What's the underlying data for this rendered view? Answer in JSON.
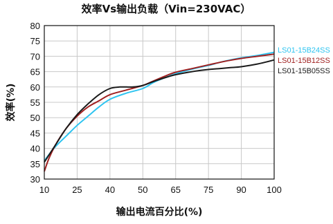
{
  "chart_data": {
    "type": "line",
    "title": "效率Vs输出负载（Vin=230VAC）",
    "xlabel": "输出电流百分比(%)",
    "ylabel": "效率(%)",
    "x_ticks": [
      10,
      25,
      40,
      50,
      65,
      75,
      90,
      100
    ],
    "y_ticks": [
      30,
      35,
      40,
      45,
      50,
      55,
      60,
      65,
      70,
      75,
      80
    ],
    "ylim": [
      30,
      80
    ],
    "grid": true,
    "legend_position": "right",
    "series": [
      {
        "name": "LS01-15B24SS",
        "color": "#2ec4f0",
        "points": [
          [
            10,
            36.0
          ],
          [
            15,
            40.5
          ],
          [
            20,
            44.0
          ],
          [
            25,
            47.5
          ],
          [
            30,
            50.5
          ],
          [
            35,
            53.5
          ],
          [
            40,
            56.0
          ],
          [
            45,
            58.0
          ],
          [
            50,
            59.5
          ],
          [
            55,
            61.5
          ],
          [
            60,
            63.0
          ],
          [
            65,
            64.3
          ],
          [
            70,
            65.8
          ],
          [
            75,
            67.0
          ],
          [
            80,
            68.0
          ],
          [
            85,
            68.8
          ],
          [
            90,
            69.5
          ],
          [
            95,
            70.3
          ],
          [
            100,
            71.3
          ]
        ]
      },
      {
        "name": "LS01-15B12SS",
        "color": "#a02020",
        "points": [
          [
            10,
            32.5
          ],
          [
            12,
            36.5
          ],
          [
            15,
            41.0
          ],
          [
            20,
            46.5
          ],
          [
            25,
            50.5
          ],
          [
            30,
            53.5
          ],
          [
            35,
            55.5
          ],
          [
            40,
            57.5
          ],
          [
            45,
            59.0
          ],
          [
            50,
            60.5
          ],
          [
            55,
            62.0
          ],
          [
            60,
            63.5
          ],
          [
            65,
            64.8
          ],
          [
            70,
            66.0
          ],
          [
            75,
            67.2
          ],
          [
            80,
            68.0
          ],
          [
            85,
            68.7
          ],
          [
            90,
            69.3
          ],
          [
            95,
            70.0
          ],
          [
            100,
            70.7
          ]
        ]
      },
      {
        "name": "LS01-15B05SS",
        "color": "#1a1a1a",
        "points": [
          [
            10,
            35.5
          ],
          [
            15,
            41.0
          ],
          [
            20,
            46.5
          ],
          [
            25,
            51.0
          ],
          [
            30,
            54.5
          ],
          [
            35,
            57.5
          ],
          [
            40,
            59.5
          ],
          [
            43,
            60.0
          ],
          [
            47,
            60.0
          ],
          [
            50,
            60.5
          ],
          [
            55,
            61.8
          ],
          [
            60,
            63.0
          ],
          [
            65,
            64.0
          ],
          [
            70,
            65.0
          ],
          [
            75,
            65.7
          ],
          [
            80,
            66.0
          ],
          [
            85,
            66.3
          ],
          [
            90,
            66.6
          ],
          [
            95,
            67.5
          ],
          [
            100,
            68.8
          ]
        ]
      }
    ]
  }
}
